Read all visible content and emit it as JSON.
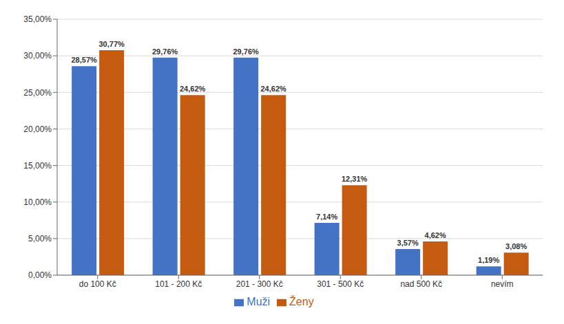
{
  "chart_data": {
    "type": "bar",
    "categories": [
      "do 100 Kč",
      "101 - 200 Kč",
      "201 - 300 Kč",
      "301 - 500 Kč",
      "nad 500 Kč",
      "nevím"
    ],
    "series": [
      {
        "name": "Muži",
        "color": "#4472C4",
        "values": [
          28.57,
          29.76,
          29.76,
          7.14,
          3.57,
          1.19
        ],
        "value_labels": [
          "28,57%",
          "29,76%",
          "29,76%",
          "7,14%",
          "3,57%",
          "1,19%"
        ]
      },
      {
        "name": "Ženy",
        "color": "#C55A11",
        "values": [
          30.77,
          24.62,
          24.62,
          12.31,
          4.62,
          3.08
        ],
        "value_labels": [
          "30,77%",
          "24,62%",
          "24,62%",
          "12,31%",
          "4,62%",
          "3,08%"
        ]
      }
    ],
    "ylim": [
      0,
      35
    ],
    "yticks": [
      {
        "value": 0,
        "label": "0,00%"
      },
      {
        "value": 5,
        "label": "5,00%"
      },
      {
        "value": 10,
        "label": "10,00%"
      },
      {
        "value": 15,
        "label": "15,00%"
      },
      {
        "value": 20,
        "label": "20,00%"
      },
      {
        "value": 25,
        "label": "25,00%"
      },
      {
        "value": 30,
        "label": "30,00%"
      },
      {
        "value": 35,
        "label": "35,00%"
      }
    ],
    "grid": true,
    "legend": "bottom",
    "data_labels": true
  }
}
